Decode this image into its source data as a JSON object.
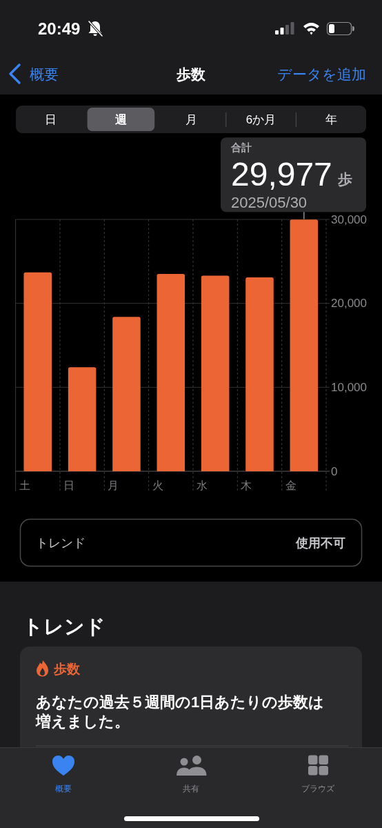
{
  "chart_data": {
    "type": "bar",
    "title": "歩数",
    "categories": [
      "土",
      "日",
      "月",
      "火",
      "水",
      "木",
      "金"
    ],
    "values": [
      23700,
      12400,
      18400,
      23500,
      23300,
      23100,
      29977
    ],
    "color": "#ec6535",
    "ylim": [
      0,
      30000
    ],
    "yticks": [
      0,
      {
        "value": 10000,
        "label": "10,000"
      },
      {
        "value": 20000,
        "label": "20,000"
      },
      {
        "value": 30000,
        "label": "30,000"
      }
    ],
    "grid": true,
    "value_labels": [
      null,
      null,
      null,
      null,
      null,
      null,
      "29,977"
    ],
    "annotations": [
      "20:49",
      "概要",
      "データを追加",
      "日",
      "週",
      "月",
      "6か月",
      "年",
      "合計",
      "歩",
      "2025/05/30",
      "トレンド",
      "使用不可",
      "トレンド",
      "歩数",
      "あなたの過去５週間の1日あたりの歩数は増えました。",
      "概要",
      "共有",
      "ブラウズ"
    ]
  }
}
